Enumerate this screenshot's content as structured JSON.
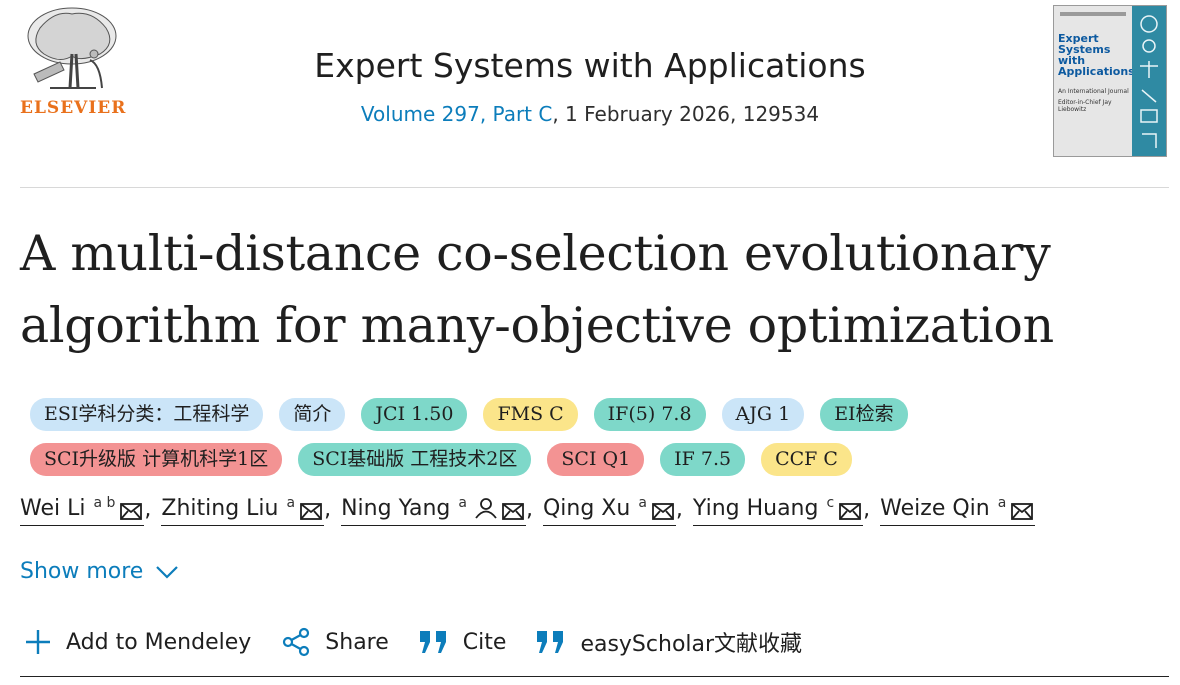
{
  "publisher": {
    "name": "ELSEVIER"
  },
  "journal": {
    "title": "Expert Systems with Applications",
    "issue_link": "Volume 297, Part C",
    "issue_rest": ", 1 February 2026, 129534"
  },
  "cover": {
    "title": "Expert Systems with Applications",
    "subtitle": "An International Journal",
    "editor": "Editor-in-Chief Jay Liebowitz"
  },
  "article": {
    "title": "A multi-distance co-selection evolutionary algorithm for many-objective optimization"
  },
  "badges": {
    "row1": [
      {
        "label": "ESI学科分类：工程科学",
        "color": "blue"
      },
      {
        "label": "简介",
        "color": "blue"
      },
      {
        "label": "JCI 1.50",
        "color": "teal"
      },
      {
        "label": "FMS C",
        "color": "yellow"
      },
      {
        "label": "IF(5) 7.8",
        "color": "teal"
      },
      {
        "label": "AJG 1",
        "color": "blue"
      },
      {
        "label": "EI检索",
        "color": "teal"
      }
    ],
    "row2": [
      {
        "label": "SCI升级版 计算机科学1区",
        "color": "red"
      },
      {
        "label": "SCI基础版 工程技术2区",
        "color": "teal"
      },
      {
        "label": "SCI Q1",
        "color": "red"
      },
      {
        "label": "IF 7.5",
        "color": "teal"
      },
      {
        "label": "CCF C",
        "color": "yellow"
      }
    ]
  },
  "authors": [
    {
      "name": "Wei Li",
      "aff": "a b",
      "corresponding": false
    },
    {
      "name": "Zhiting Liu",
      "aff": "a",
      "corresponding": false
    },
    {
      "name": "Ning Yang",
      "aff": "a",
      "corresponding": true
    },
    {
      "name": "Qing Xu",
      "aff": "a",
      "corresponding": false
    },
    {
      "name": "Ying Huang",
      "aff": "c",
      "corresponding": false
    },
    {
      "name": "Weize Qin",
      "aff": "a",
      "corresponding": false
    }
  ],
  "author_separator": ",",
  "show_more": {
    "label": "Show more"
  },
  "actions": {
    "mendeley": "Add to Mendeley",
    "share": "Share",
    "cite": "Cite",
    "easyscholar": "easyScholar文献收藏"
  },
  "colors": {
    "link": "#0c7dbb",
    "elsevier_orange": "#e9711c",
    "badge_blue": "#cbe5f8",
    "badge_teal": "#7ed8c9",
    "badge_yellow": "#fbe58a",
    "badge_red": "#f39393"
  }
}
